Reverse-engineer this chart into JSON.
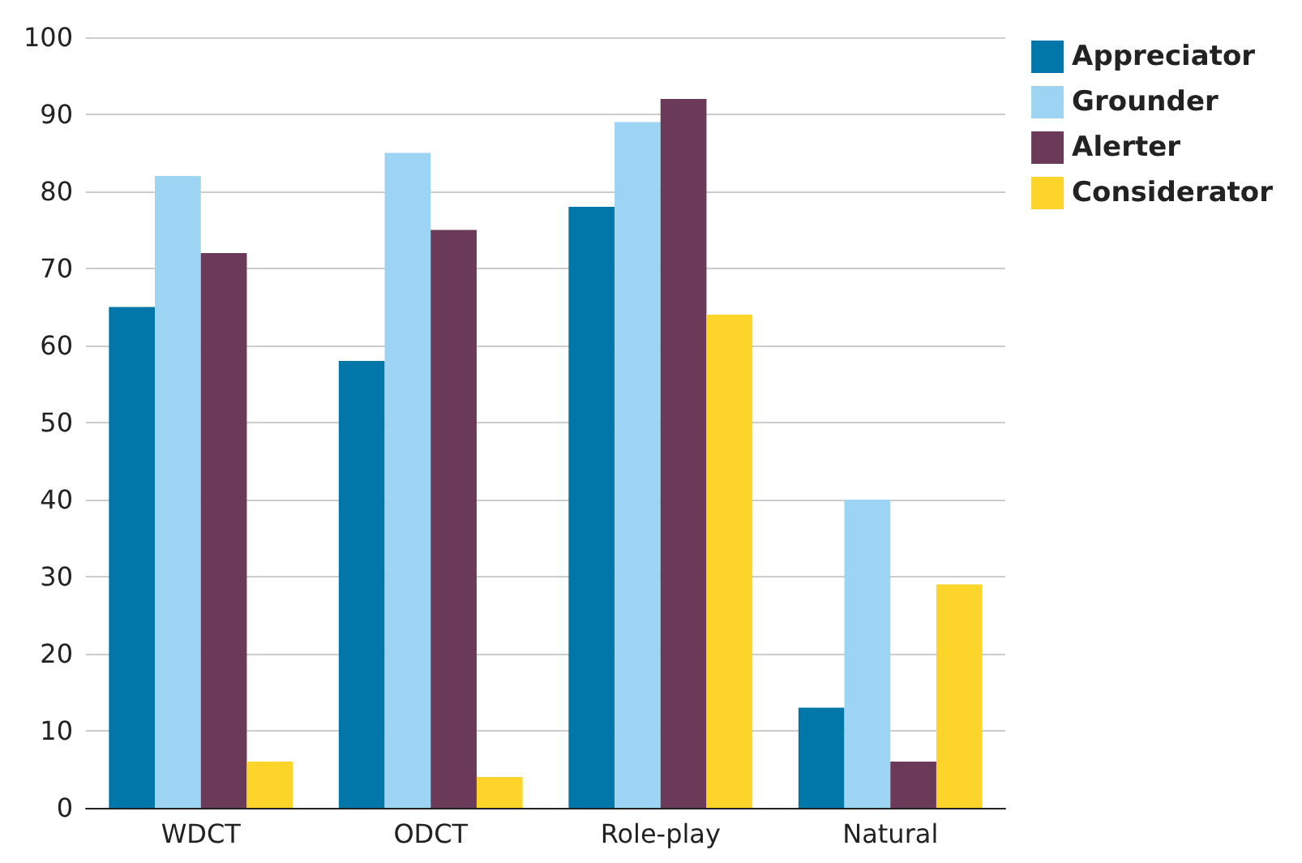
{
  "chart_data": {
    "type": "bar",
    "categories": [
      "WDCT",
      "ODCT",
      "Role-play",
      "Natural"
    ],
    "series": [
      {
        "name": "Appreciator",
        "color": "#0077a8",
        "values": [
          65,
          58,
          78,
          13
        ]
      },
      {
        "name": "Grounder",
        "color": "#9dd4f3",
        "values": [
          82,
          85,
          89,
          40
        ]
      },
      {
        "name": "Alerter",
        "color": "#6b3a58",
        "values": [
          72,
          75,
          92,
          6
        ]
      },
      {
        "name": "Considerator",
        "color": "#fdd42a",
        "values": [
          6,
          4,
          64,
          29
        ]
      }
    ],
    "ylim": [
      0,
      100
    ],
    "yticks": [
      0,
      10,
      20,
      30,
      40,
      50,
      60,
      70,
      80,
      90,
      100
    ],
    "grid": "y",
    "legend": "top right"
  }
}
